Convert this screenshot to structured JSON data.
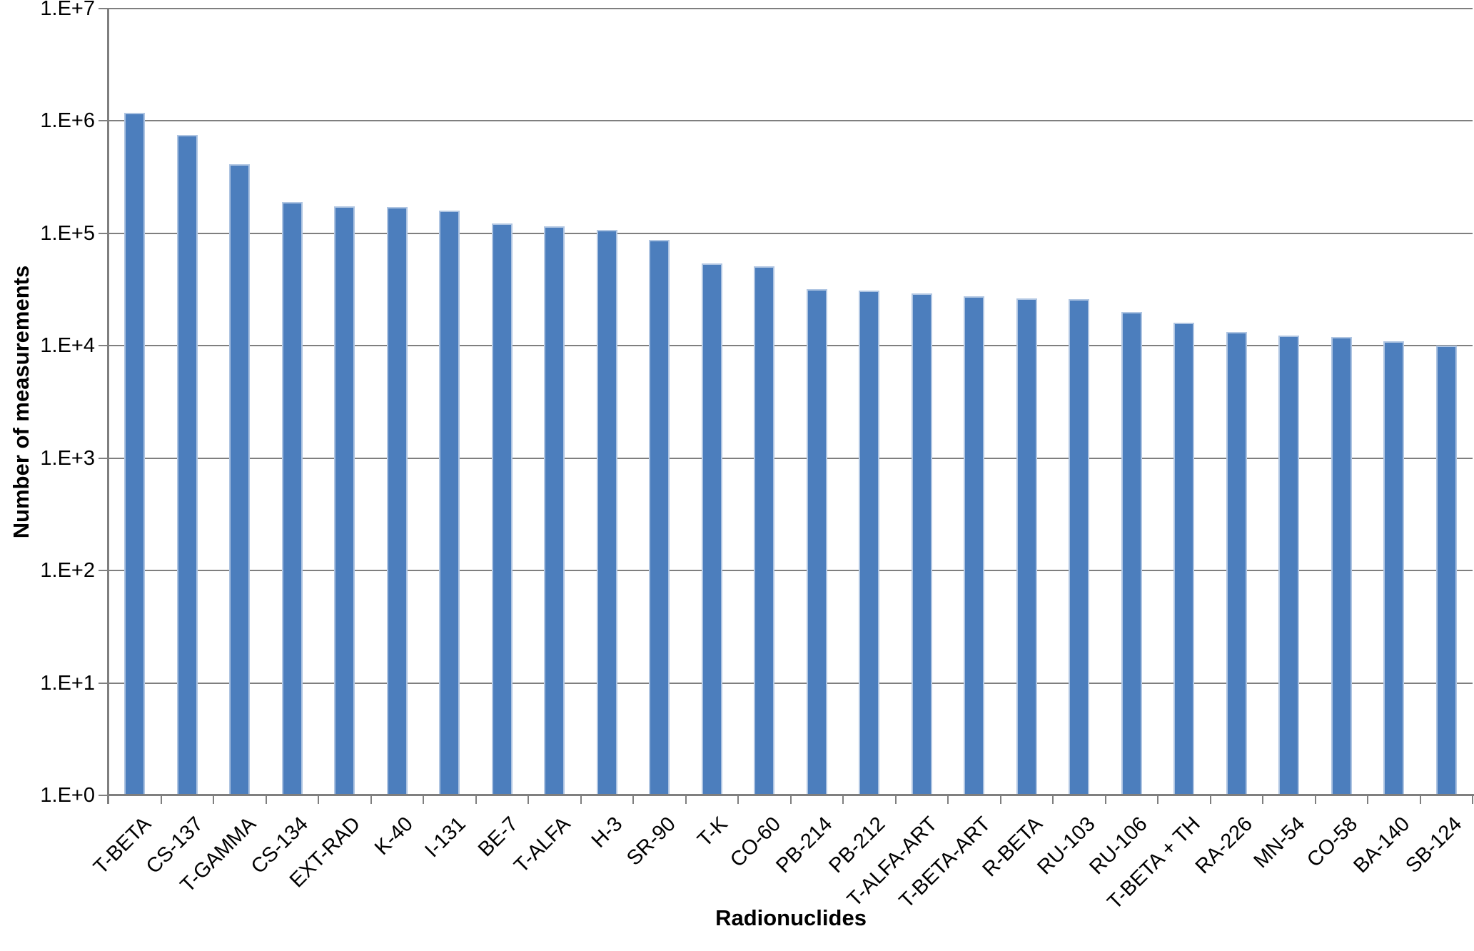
{
  "chart_data": {
    "type": "bar",
    "title": "",
    "xlabel": "Radionuclides",
    "ylabel": "Number of measurements",
    "y_scale": "log10",
    "ylim": [
      1,
      10000000
    ],
    "y_tick_labels": [
      "1.E+0",
      "1.E+1",
      "1.E+2",
      "1.E+3",
      "1.E+4",
      "1.E+5",
      "1.E+6",
      "1.E+7"
    ],
    "grid": "horizontal",
    "legend_position": "none",
    "categories": [
      "T-BETA",
      "CS-137",
      "T-GAMMA",
      "CS-134",
      "EXT-RAD",
      "K-40",
      "I-131",
      "BE-7",
      "T-ALFA",
      "H-3",
      "SR-90",
      "T-K",
      "CO-60",
      "PB-214",
      "PB-212",
      "T-ALFA-ART",
      "T-BETA-ART",
      "R-BETA",
      "RU-103",
      "RU-106",
      "T-BETA + TH",
      "RA-226",
      "MN-54",
      "CO-58",
      "BA-140",
      "SB-124"
    ],
    "values": [
      1180000,
      750000,
      410000,
      190000,
      175000,
      171000,
      159000,
      122000,
      116000,
      107000,
      88000,
      54000,
      51000,
      32000,
      31000,
      29000,
      27500,
      26500,
      26000,
      20000,
      16000,
      13200,
      12300,
      11900,
      10900,
      10000
    ],
    "colors": {
      "bar_fill": "#4C7EBD",
      "bar_border": "#AFC5E2",
      "gridline": "#7F7F7F",
      "axis": "#7F7F7F",
      "text": "#000000"
    }
  }
}
